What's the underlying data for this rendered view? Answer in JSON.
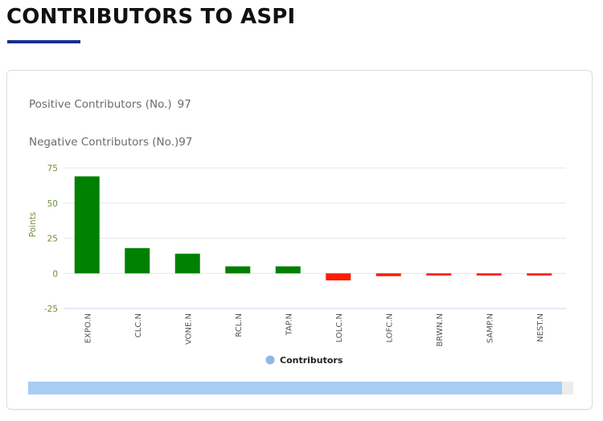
{
  "page": {
    "title": "CONTRIBUTORS TO ASPI"
  },
  "stats": {
    "positive_label": "Positive Contributors (No.)",
    "positive_value": "97",
    "negative_label": "Negative Contributors (No.)",
    "negative_value": "97"
  },
  "colors": {
    "positive": "#008000",
    "negative": "#ff1a00",
    "legend_marker": "#8fb6e6",
    "title_underline": "#1a2e8c",
    "scrollbar_thumb": "#a7cdf5"
  },
  "scrollbar": {
    "visible_fraction": 0.98
  },
  "chart_data": {
    "type": "bar",
    "title": "",
    "xlabel": "",
    "ylabel": "Points",
    "ylim": [
      -25,
      75
    ],
    "yticks": [
      75,
      50,
      25,
      0,
      -25
    ],
    "grid": true,
    "legend": {
      "position": "bottom-center",
      "entries": [
        "Contributors"
      ]
    },
    "categories": [
      "EXPO.N",
      "CLC.N",
      "VONE.N",
      "RCL.N",
      "TAP.N",
      "LOLC.N",
      "LOFC.N",
      "BRWN.N",
      "SAMP.N",
      "NEST.N"
    ],
    "series": [
      {
        "name": "Contributors",
        "values": [
          69,
          18,
          14,
          5,
          5,
          -5,
          -2,
          -1.5,
          -1.5,
          -1.5
        ]
      }
    ]
  }
}
